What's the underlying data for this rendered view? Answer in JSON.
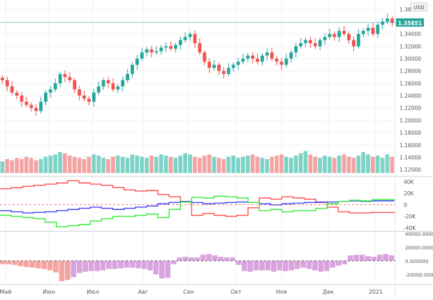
{
  "chart_data": [
    {
      "panel": "price",
      "type": "candlestick",
      "currency": "USD",
      "current_price_label": "1.35851",
      "y_ticks": [
        "1.38000",
        "1.36000",
        "1.34000",
        "1.32000",
        "1.30000",
        "1.28000",
        "1.26000",
        "1.24000",
        "1.22000",
        "1.20000",
        "1.18000",
        "1.16000",
        "1.14000",
        "1.12000"
      ],
      "y_tick_values": [
        1.38,
        1.36,
        1.34,
        1.32,
        1.3,
        1.28,
        1.26,
        1.24,
        1.22,
        1.2,
        1.18,
        1.16,
        1.14,
        1.12
      ],
      "ylim": [
        1.11,
        1.395
      ],
      "current_price": 1.35851,
      "close_series": [
        1.265,
        1.255,
        1.245,
        1.24,
        1.23,
        1.225,
        1.22,
        1.215,
        1.23,
        1.245,
        1.25,
        1.26,
        1.275,
        1.27,
        1.265,
        1.25,
        1.24,
        1.235,
        1.23,
        1.245,
        1.255,
        1.265,
        1.26,
        1.25,
        1.255,
        1.265,
        1.275,
        1.29,
        1.3,
        1.31,
        1.315,
        1.31,
        1.312,
        1.318,
        1.32,
        1.316,
        1.322,
        1.33,
        1.335,
        1.34,
        1.325,
        1.31,
        1.295,
        1.285,
        1.29,
        1.28,
        1.275,
        1.285,
        1.29,
        1.295,
        1.3,
        1.305,
        1.3,
        1.295,
        1.305,
        1.31,
        1.3,
        1.295,
        1.29,
        1.3,
        1.31,
        1.32,
        1.325,
        1.33,
        1.325,
        1.32,
        1.33,
        1.335,
        1.34,
        1.335,
        1.345,
        1.34,
        1.33,
        1.32,
        1.34,
        1.345,
        1.35,
        1.34,
        1.355,
        1.36,
        1.365,
        1.358
      ],
      "volume_series": [
        10,
        12,
        11,
        13,
        12,
        14,
        13,
        11,
        12,
        14,
        15,
        16,
        18,
        17,
        15,
        14,
        13,
        12,
        14,
        16,
        15,
        13,
        12,
        14,
        15,
        14,
        13,
        16,
        15,
        14,
        13,
        15,
        14,
        16,
        15,
        14,
        13,
        15,
        17,
        16,
        14,
        13,
        15,
        16,
        14,
        13,
        12,
        14,
        15,
        13,
        14,
        15,
        16,
        14,
        13,
        12,
        14,
        15,
        16,
        14,
        13,
        15,
        17,
        19,
        16,
        14,
        13,
        15,
        14,
        13,
        15,
        16,
        14,
        13,
        15,
        18,
        16,
        14,
        15,
        13,
        16,
        14
      ]
    },
    {
      "panel": "positioning",
      "type": "line",
      "y_ticks": [
        "40K",
        "20K",
        "0",
        "-20K",
        "-40K"
      ],
      "y_tick_values": [
        40000,
        20000,
        0,
        -20000,
        -40000
      ],
      "ylim": [
        -44000,
        48000
      ],
      "series": [
        {
          "color": "#ff4d4d",
          "values": [
            28000,
            30000,
            32000,
            34000,
            36000,
            38000,
            42000,
            38000,
            36000,
            34000,
            30000,
            26000,
            24000,
            25000,
            18000,
            14000,
            5000,
            -18000,
            -15000,
            -18000,
            -20000,
            -18000,
            -5000,
            12000,
            10000,
            14000,
            12000,
            10000,
            4000,
            -4000,
            -12000,
            -14000,
            -14000,
            -13000,
            -13000,
            -14000
          ]
        },
        {
          "color": "#4040ff",
          "values": [
            -10000,
            -12000,
            -14000,
            -13000,
            -12000,
            -10000,
            -8000,
            -6000,
            -4000,
            -6000,
            -8000,
            -6000,
            -4000,
            -2000,
            2000,
            4000,
            6000,
            4000,
            2000,
            3000,
            4000,
            5000,
            4000,
            2000,
            0,
            2000,
            3000,
            4000,
            5000,
            5000,
            6000,
            7000,
            6000,
            7000,
            7000,
            7000
          ]
        },
        {
          "color": "#33ee33",
          "values": [
            -18000,
            -20000,
            -22000,
            -24000,
            -30000,
            -38000,
            -36000,
            -34000,
            -28000,
            -24000,
            -20000,
            -20000,
            -18000,
            -16000,
            -22000,
            -8000,
            5000,
            13000,
            12000,
            15000,
            14000,
            12000,
            4000,
            -10000,
            -8000,
            -12000,
            -10000,
            -10000,
            -6000,
            2000,
            6000,
            8000,
            7000,
            9000,
            9000,
            8000
          ]
        }
      ]
    },
    {
      "panel": "net_difference",
      "type": "bar",
      "y_ticks": [
        "40000.000000",
        "20000.000000",
        "0.000000",
        "-20000.000000"
      ],
      "y_tick_values": [
        40000,
        20000,
        0,
        -20000
      ],
      "ylim": [
        -33000,
        42000
      ],
      "values": [
        -5000,
        -5000,
        -6000,
        -8000,
        -9000,
        -10000,
        -11000,
        -12000,
        -14000,
        -17000,
        -30000,
        -28000,
        -24000,
        -18000,
        -16000,
        -15000,
        -15000,
        -14000,
        -12000,
        -12000,
        -11000,
        -10000,
        -10000,
        -11000,
        -12000,
        -14000,
        -20000,
        -26000,
        -25000,
        -5000,
        5000,
        6000,
        5000,
        5000,
        9000,
        10000,
        8000,
        6000,
        5000,
        5000,
        -6000,
        -15000,
        -16000,
        -14000,
        -14000,
        -14000,
        -16000,
        -14000,
        -15000,
        -14000,
        -12000,
        -10000,
        -12000,
        -14000,
        -16000,
        -15000,
        -10000,
        -7000,
        -5000,
        8000,
        9000,
        9000,
        7000,
        6000,
        9000,
        10000,
        8000
      ]
    },
    {
      "panel": "time_axis",
      "x_labels": [
        "Май",
        "Июн",
        "Июл",
        "Авг",
        "Сен",
        "Окт",
        "Ноя",
        "Дек",
        "2021"
      ]
    }
  ]
}
